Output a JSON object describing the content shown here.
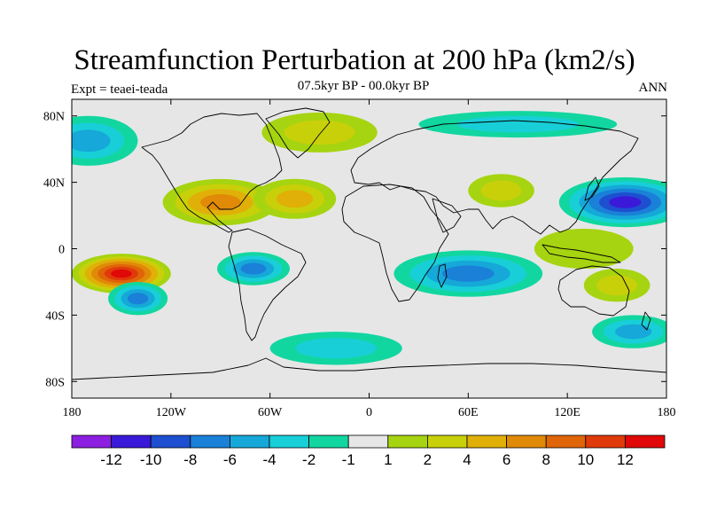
{
  "figure": {
    "title": "Streamfunction Perturbation at 200 hPa (km2/s)",
    "subtitle": "07.5kyr BP - 00.0kyr BP",
    "expt_label": "Expt = teaei-teada",
    "season_label": "ANN"
  },
  "map": {
    "lon_range": [
      -180,
      180
    ],
    "lat_range": [
      -90,
      90
    ],
    "x_ticks": [
      {
        "lon": -180,
        "label": "180"
      },
      {
        "lon": -120,
        "label": "120W"
      },
      {
        "lon": -60,
        "label": "60W"
      },
      {
        "lon": 0,
        "label": "0"
      },
      {
        "lon": 60,
        "label": "60E"
      },
      {
        "lon": 120,
        "label": "120E"
      },
      {
        "lon": 180,
        "label": "180"
      }
    ],
    "y_ticks": [
      {
        "lat": 80,
        "label": "80N"
      },
      {
        "lat": 40,
        "label": "40N"
      },
      {
        "lat": 0,
        "label": "0"
      },
      {
        "lat": -40,
        "label": "40S"
      },
      {
        "lat": -80,
        "label": "80S"
      }
    ],
    "background_color": "#e6e6e6",
    "anomalies": [
      {
        "lon": -150,
        "lat": -15,
        "rx_deg": 30,
        "ry_deg": 12,
        "level": 12
      },
      {
        "lon": -90,
        "lat": 28,
        "rx_deg": 35,
        "ry_deg": 14,
        "level": 6
      },
      {
        "lon": -45,
        "lat": 30,
        "rx_deg": 25,
        "ry_deg": 12,
        "level": 4
      },
      {
        "lon": -140,
        "lat": -30,
        "rx_deg": 18,
        "ry_deg": 10,
        "level": -6
      },
      {
        "lon": -70,
        "lat": -12,
        "rx_deg": 22,
        "ry_deg": 10,
        "level": -6
      },
      {
        "lon": 60,
        "lat": -15,
        "rx_deg": 45,
        "ry_deg": 14,
        "level": -6
      },
      {
        "lon": 155,
        "lat": 28,
        "rx_deg": 40,
        "ry_deg": 15,
        "level": -10
      },
      {
        "lon": 160,
        "lat": -50,
        "rx_deg": 25,
        "ry_deg": 10,
        "level": -4
      },
      {
        "lon": -170,
        "lat": 65,
        "rx_deg": 30,
        "ry_deg": 15,
        "level": -4
      },
      {
        "lon": 90,
        "lat": 75,
        "rx_deg": 60,
        "ry_deg": 8,
        "level": -2
      },
      {
        "lon": -30,
        "lat": 70,
        "rx_deg": 35,
        "ry_deg": 12,
        "level": 2
      },
      {
        "lon": 80,
        "lat": 35,
        "rx_deg": 20,
        "ry_deg": 10,
        "level": 2
      },
      {
        "lon": 130,
        "lat": 0,
        "rx_deg": 30,
        "ry_deg": 12,
        "level": 1
      },
      {
        "lon": -20,
        "lat": -60,
        "rx_deg": 40,
        "ry_deg": 10,
        "level": -2
      },
      {
        "lon": 150,
        "lat": -22,
        "rx_deg": 20,
        "ry_deg": 10,
        "level": 2
      }
    ]
  },
  "colorbar": {
    "colors": [
      "#8c1fe0",
      "#3a1ad8",
      "#1e4fd0",
      "#1a80d8",
      "#16a8d8",
      "#18cfd8",
      "#12d6a0",
      "#e6e6e6",
      "#a6d410",
      "#c8d00a",
      "#e0b008",
      "#e08a08",
      "#e06408",
      "#e03a0a",
      "#e00808"
    ],
    "labels": [
      "-12",
      "-10",
      "-8",
      "-6",
      "-4",
      "-2",
      "-1",
      "1",
      "2",
      "4",
      "6",
      "8",
      "10",
      "12"
    ]
  }
}
